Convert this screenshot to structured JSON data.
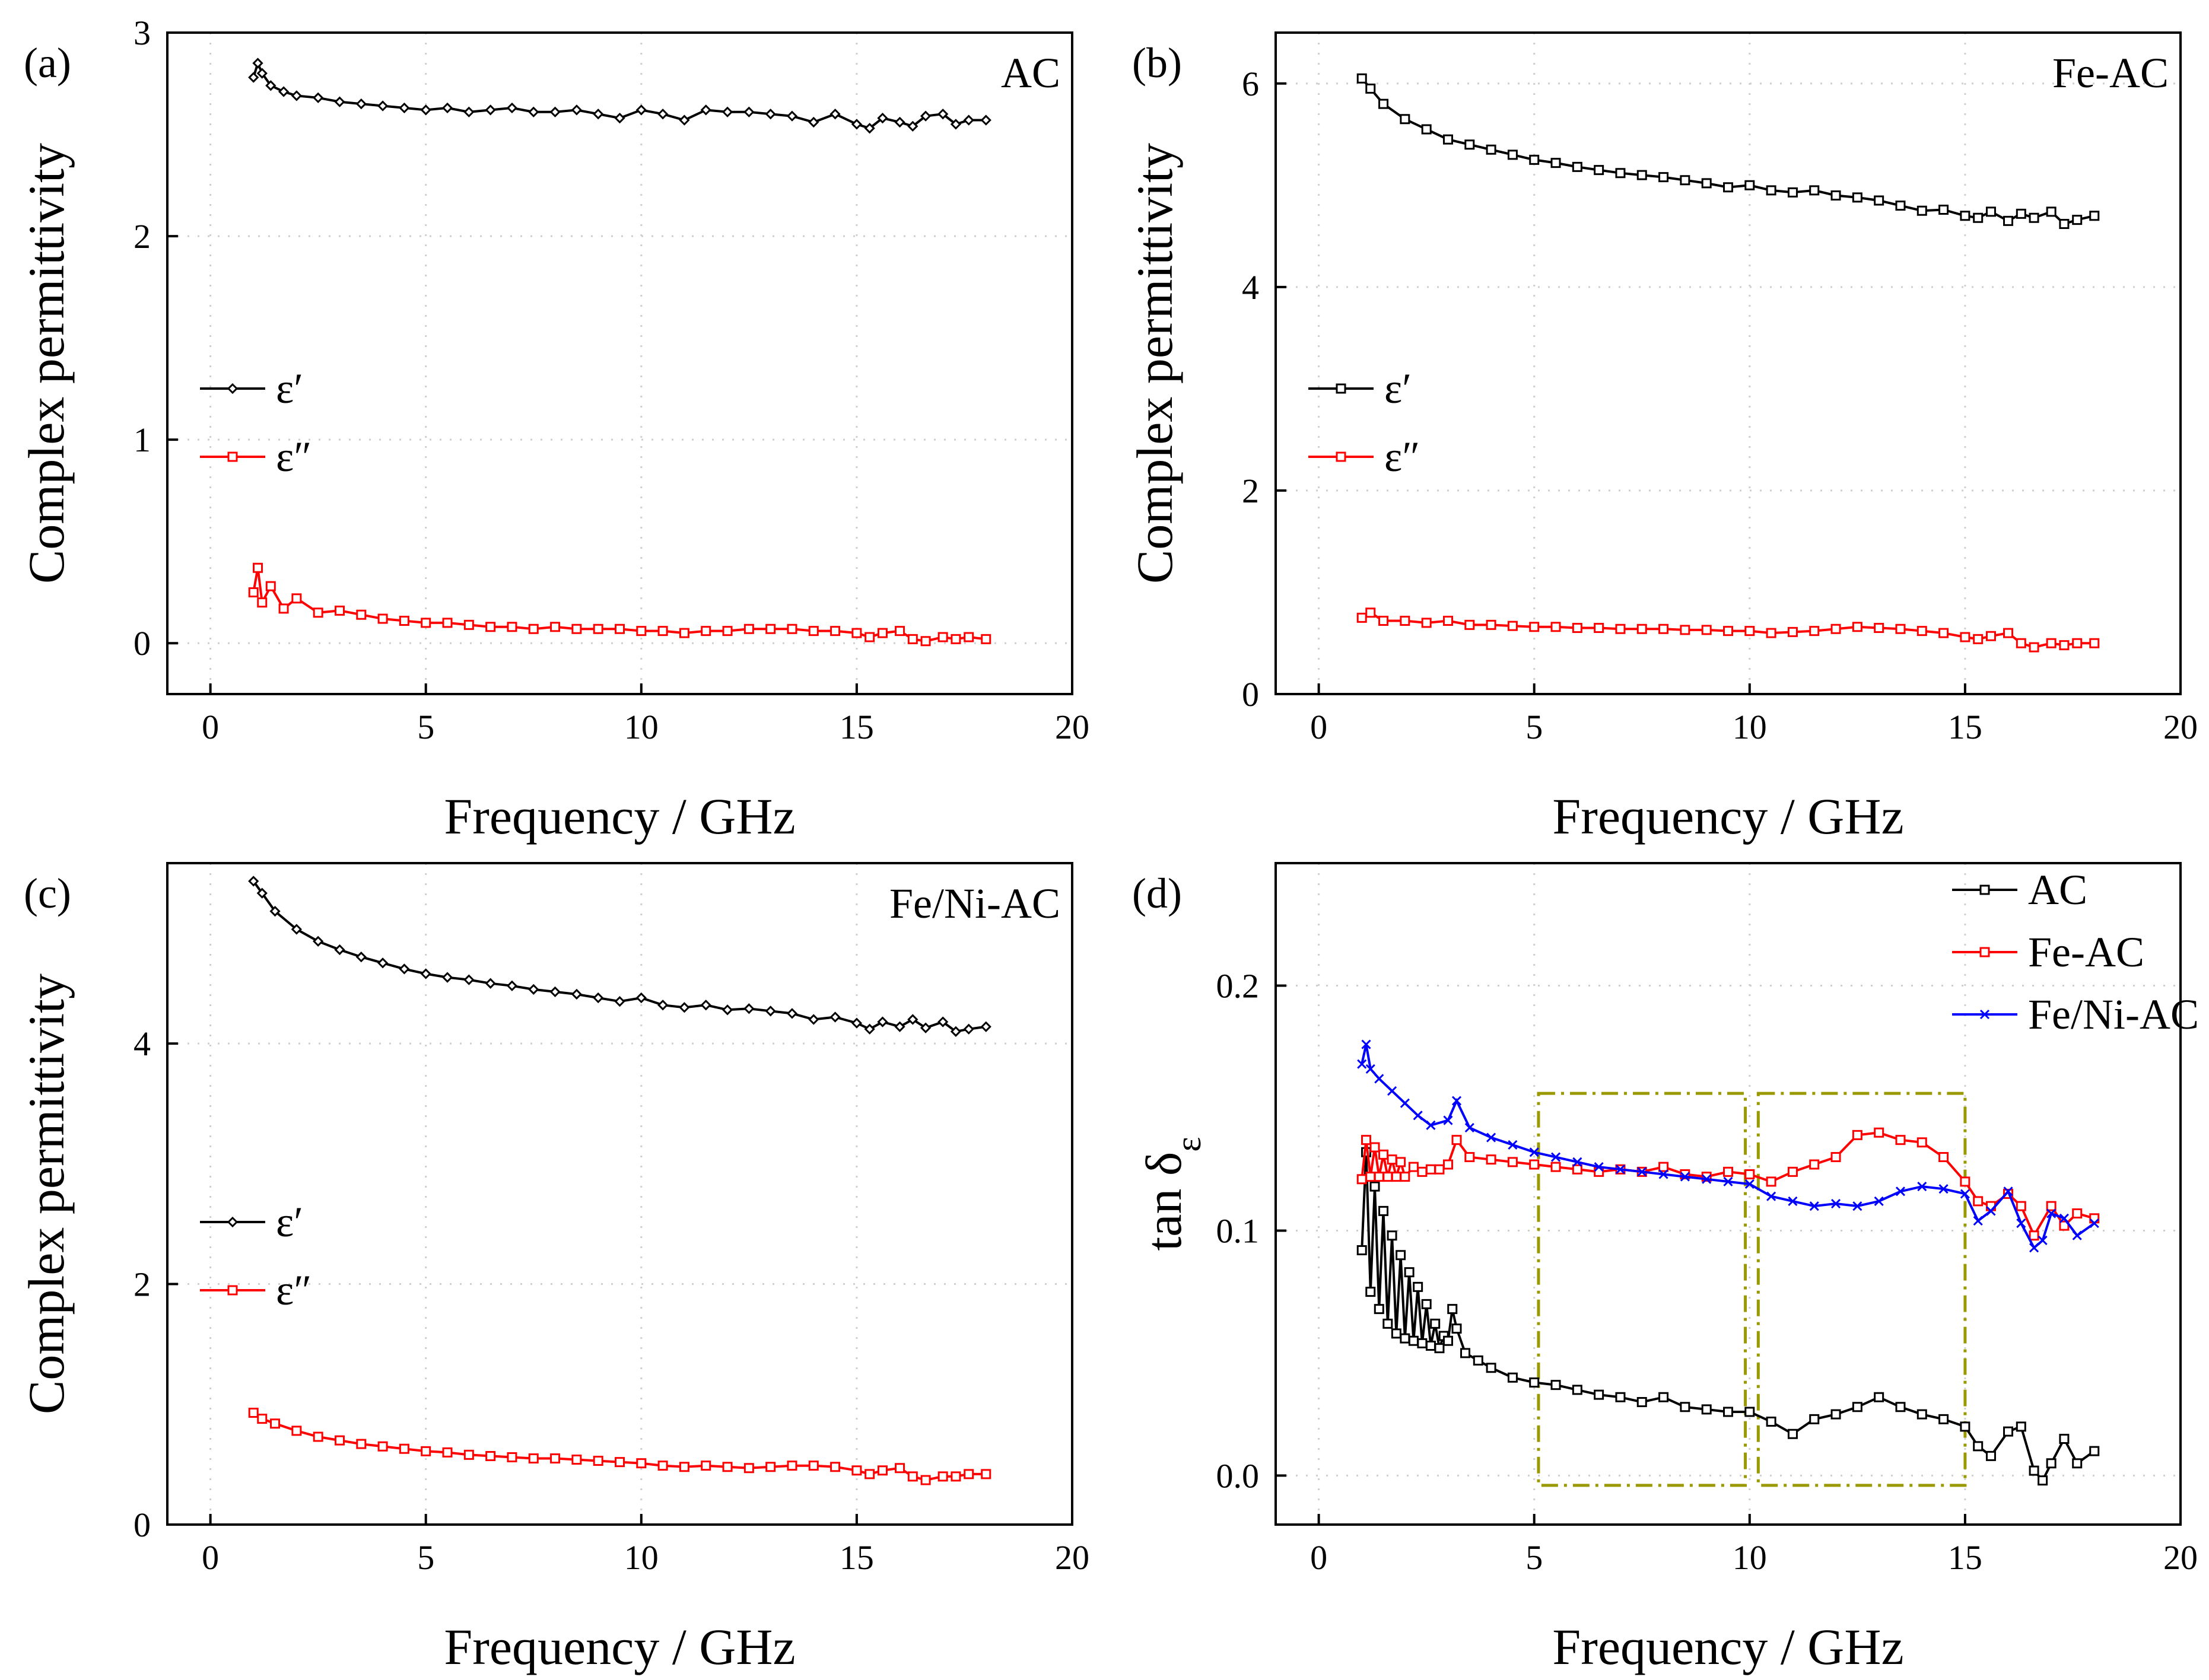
{
  "figure": {
    "layout": "2x2 panels"
  },
  "chart_data": [
    {
      "panel": "(a)",
      "type": "line",
      "annotation": "AC",
      "xlabel": "Frequency / GHz",
      "ylabel": "Complex permittivity",
      "xlim": [
        -1,
        20
      ],
      "ylim": [
        -0.25,
        3.0
      ],
      "xticks": [
        0,
        5,
        10,
        15,
        20
      ],
      "yticks": [
        0,
        1,
        2,
        3
      ],
      "grid": true,
      "legend_position": "center-left",
      "series": [
        {
          "name": "ε′",
          "color": "#000000",
          "marker": "diamond",
          "x": [
            1,
            1.1,
            1.2,
            1.4,
            1.7,
            2,
            2.5,
            3,
            3.5,
            4,
            4.5,
            5,
            5.5,
            6,
            6.5,
            7,
            7.5,
            8,
            8.5,
            9,
            9.5,
            10,
            10.5,
            11,
            11.5,
            12,
            12.5,
            13,
            13.5,
            14,
            14.5,
            15,
            15.3,
            15.6,
            16,
            16.3,
            16.6,
            17,
            17.3,
            17.6,
            18
          ],
          "y": [
            2.78,
            2.85,
            2.8,
            2.74,
            2.71,
            2.69,
            2.68,
            2.66,
            2.65,
            2.64,
            2.63,
            2.62,
            2.63,
            2.61,
            2.62,
            2.63,
            2.61,
            2.61,
            2.62,
            2.6,
            2.58,
            2.62,
            2.6,
            2.57,
            2.62,
            2.61,
            2.61,
            2.6,
            2.59,
            2.56,
            2.6,
            2.55,
            2.53,
            2.58,
            2.56,
            2.54,
            2.59,
            2.6,
            2.55,
            2.57,
            2.57
          ]
        },
        {
          "name": "ε″",
          "color": "#ff0000",
          "marker": "square",
          "x": [
            1,
            1.1,
            1.2,
            1.4,
            1.7,
            2,
            2.5,
            3,
            3.5,
            4,
            4.5,
            5,
            5.5,
            6,
            6.5,
            7,
            7.5,
            8,
            8.5,
            9,
            9.5,
            10,
            10.5,
            11,
            11.5,
            12,
            12.5,
            13,
            13.5,
            14,
            14.5,
            15,
            15.3,
            15.6,
            16,
            16.3,
            16.6,
            17,
            17.3,
            17.6,
            18
          ],
          "y": [
            0.25,
            0.37,
            0.2,
            0.28,
            0.17,
            0.22,
            0.15,
            0.16,
            0.14,
            0.12,
            0.11,
            0.1,
            0.1,
            0.09,
            0.08,
            0.08,
            0.07,
            0.08,
            0.07,
            0.07,
            0.07,
            0.06,
            0.06,
            0.05,
            0.06,
            0.06,
            0.07,
            0.07,
            0.07,
            0.06,
            0.06,
            0.05,
            0.03,
            0.05,
            0.06,
            0.02,
            0.01,
            0.03,
            0.02,
            0.03,
            0.02
          ]
        }
      ]
    },
    {
      "panel": "(b)",
      "type": "line",
      "annotation": "Fe-AC",
      "xlabel": "Frequency / GHz",
      "ylabel": "Complex permittivity",
      "xlim": [
        -1,
        20
      ],
      "ylim": [
        0,
        6.5
      ],
      "xticks": [
        0,
        5,
        10,
        15,
        20
      ],
      "yticks": [
        0,
        2,
        4,
        6
      ],
      "grid": true,
      "legend_position": "center-left",
      "series": [
        {
          "name": "ε′",
          "color": "#000000",
          "marker": "square",
          "x": [
            1,
            1.2,
            1.5,
            2,
            2.5,
            3,
            3.5,
            4,
            4.5,
            5,
            5.5,
            6,
            6.5,
            7,
            7.5,
            8,
            8.5,
            9,
            9.5,
            10,
            10.5,
            11,
            11.5,
            12,
            12.5,
            13,
            13.5,
            14,
            14.5,
            15,
            15.3,
            15.6,
            16,
            16.3,
            16.6,
            17,
            17.3,
            17.6,
            18
          ],
          "y": [
            6.05,
            5.95,
            5.8,
            5.65,
            5.55,
            5.45,
            5.4,
            5.35,
            5.3,
            5.25,
            5.22,
            5.18,
            5.15,
            5.12,
            5.1,
            5.08,
            5.05,
            5.02,
            4.98,
            5.0,
            4.95,
            4.93,
            4.95,
            4.9,
            4.88,
            4.85,
            4.8,
            4.75,
            4.76,
            4.7,
            4.68,
            4.74,
            4.65,
            4.72,
            4.68,
            4.74,
            4.62,
            4.66,
            4.7
          ]
        },
        {
          "name": "ε″",
          "color": "#ff0000",
          "marker": "square",
          "x": [
            1,
            1.2,
            1.5,
            2,
            2.5,
            3,
            3.5,
            4,
            4.5,
            5,
            5.5,
            6,
            6.5,
            7,
            7.5,
            8,
            8.5,
            9,
            9.5,
            10,
            10.5,
            11,
            11.5,
            12,
            12.5,
            13,
            13.5,
            14,
            14.5,
            15,
            15.3,
            15.6,
            16,
            16.3,
            16.6,
            17,
            17.3,
            17.6,
            18
          ],
          "y": [
            0.75,
            0.8,
            0.72,
            0.72,
            0.7,
            0.72,
            0.68,
            0.68,
            0.67,
            0.66,
            0.66,
            0.65,
            0.65,
            0.64,
            0.64,
            0.64,
            0.63,
            0.63,
            0.62,
            0.62,
            0.6,
            0.61,
            0.62,
            0.64,
            0.66,
            0.65,
            0.64,
            0.62,
            0.6,
            0.56,
            0.54,
            0.57,
            0.6,
            0.5,
            0.46,
            0.5,
            0.48,
            0.5,
            0.5
          ]
        }
      ]
    },
    {
      "panel": "(c)",
      "type": "line",
      "annotation": "Fe/Ni-AC",
      "xlabel": "Frequency / GHz",
      "ylabel": "Complex permittivity",
      "xlim": [
        -1,
        20
      ],
      "ylim": [
        0,
        5.5
      ],
      "xticks": [
        0,
        5,
        10,
        15,
        20
      ],
      "yticks": [
        0,
        2,
        4
      ],
      "grid": true,
      "legend_position": "center-left",
      "series": [
        {
          "name": "ε′",
          "color": "#000000",
          "marker": "diamond",
          "x": [
            1,
            1.2,
            1.5,
            2,
            2.5,
            3,
            3.5,
            4,
            4.5,
            5,
            5.5,
            6,
            6.5,
            7,
            7.5,
            8,
            8.5,
            9,
            9.5,
            10,
            10.5,
            11,
            11.5,
            12,
            12.5,
            13,
            13.5,
            14,
            14.5,
            15,
            15.3,
            15.6,
            16,
            16.3,
            16.6,
            17,
            17.3,
            17.6,
            18
          ],
          "y": [
            5.35,
            5.25,
            5.1,
            4.95,
            4.85,
            4.78,
            4.72,
            4.67,
            4.62,
            4.58,
            4.55,
            4.53,
            4.5,
            4.48,
            4.45,
            4.43,
            4.41,
            4.38,
            4.35,
            4.38,
            4.32,
            4.3,
            4.32,
            4.28,
            4.29,
            4.27,
            4.25,
            4.2,
            4.22,
            4.17,
            4.12,
            4.18,
            4.14,
            4.2,
            4.13,
            4.18,
            4.1,
            4.12,
            4.14
          ]
        },
        {
          "name": "ε″",
          "color": "#ff0000",
          "marker": "square",
          "x": [
            1,
            1.2,
            1.5,
            2,
            2.5,
            3,
            3.5,
            4,
            4.5,
            5,
            5.5,
            6,
            6.5,
            7,
            7.5,
            8,
            8.5,
            9,
            9.5,
            10,
            10.5,
            11,
            11.5,
            12,
            12.5,
            13,
            13.5,
            14,
            14.5,
            15,
            15.3,
            15.6,
            16,
            16.3,
            16.6,
            17,
            17.3,
            17.6,
            18
          ],
          "y": [
            0.93,
            0.88,
            0.84,
            0.78,
            0.73,
            0.7,
            0.67,
            0.65,
            0.63,
            0.61,
            0.6,
            0.58,
            0.57,
            0.56,
            0.55,
            0.55,
            0.54,
            0.53,
            0.52,
            0.51,
            0.49,
            0.48,
            0.49,
            0.48,
            0.47,
            0.48,
            0.49,
            0.49,
            0.48,
            0.45,
            0.42,
            0.45,
            0.47,
            0.4,
            0.37,
            0.4,
            0.4,
            0.42,
            0.42
          ]
        }
      ]
    },
    {
      "panel": "(d)",
      "type": "line",
      "annotation": "",
      "xlabel": "Frequency / GHz",
      "ylabel": "tan δε",
      "xlim": [
        -1,
        20
      ],
      "ylim": [
        -0.02,
        0.25
      ],
      "xticks": [
        0,
        5,
        10,
        15,
        20
      ],
      "yticks": [
        0.0,
        0.1,
        0.2
      ],
      "ytick_labels": [
        "0.0",
        "0.1",
        "0.2"
      ],
      "grid": true,
      "legend_position": "top-right",
      "boxes_x": [
        [
          5.1,
          9.9
        ],
        [
          10.2,
          15
        ]
      ],
      "boxes_y": [
        -0.004,
        0.156
      ],
      "series": [
        {
          "name": "AC",
          "color": "#000000",
          "marker": "square",
          "x": [
            1,
            1.1,
            1.2,
            1.3,
            1.4,
            1.5,
            1.6,
            1.7,
            1.8,
            1.9,
            2,
            2.1,
            2.2,
            2.3,
            2.4,
            2.5,
            2.6,
            2.7,
            2.8,
            2.9,
            3,
            3.1,
            3.2,
            3.4,
            3.7,
            4,
            4.5,
            5,
            5.5,
            6,
            6.5,
            7,
            7.5,
            8,
            8.5,
            9,
            9.5,
            10,
            10.5,
            11,
            11.5,
            12,
            12.5,
            13,
            13.5,
            14,
            14.5,
            15,
            15.3,
            15.6,
            16,
            16.3,
            16.6,
            16.8,
            17,
            17.3,
            17.6,
            18
          ],
          "y": [
            0.092,
            0.132,
            0.075,
            0.118,
            0.068,
            0.108,
            0.062,
            0.098,
            0.058,
            0.09,
            0.056,
            0.083,
            0.055,
            0.077,
            0.054,
            0.07,
            0.053,
            0.062,
            0.052,
            0.057,
            0.055,
            0.068,
            0.06,
            0.05,
            0.047,
            0.044,
            0.04,
            0.038,
            0.037,
            0.035,
            0.033,
            0.032,
            0.03,
            0.032,
            0.028,
            0.027,
            0.026,
            0.026,
            0.022,
            0.017,
            0.023,
            0.025,
            0.028,
            0.032,
            0.028,
            0.025,
            0.023,
            0.02,
            0.012,
            0.008,
            0.018,
            0.02,
            0.002,
            -0.002,
            0.005,
            0.015,
            0.005,
            0.01
          ]
        },
        {
          "name": "Fe-AC",
          "color": "#ff0000",
          "marker": "square",
          "x": [
            1,
            1.1,
            1.2,
            1.3,
            1.4,
            1.5,
            1.6,
            1.7,
            1.8,
            1.9,
            2,
            2.2,
            2.4,
            2.6,
            2.8,
            3,
            3.2,
            3.5,
            4,
            4.5,
            5,
            5.5,
            6,
            6.5,
            7,
            7.5,
            8,
            8.5,
            9,
            9.5,
            10,
            10.5,
            11,
            11.5,
            12,
            12.5,
            13,
            13.5,
            14,
            14.5,
            15,
            15.3,
            15.6,
            16,
            16.3,
            16.6,
            17,
            17.3,
            17.6,
            18
          ],
          "y": [
            0.121,
            0.137,
            0.122,
            0.134,
            0.122,
            0.131,
            0.122,
            0.129,
            0.122,
            0.128,
            0.122,
            0.126,
            0.124,
            0.125,
            0.125,
            0.127,
            0.137,
            0.13,
            0.129,
            0.128,
            0.127,
            0.126,
            0.125,
            0.124,
            0.125,
            0.124,
            0.126,
            0.123,
            0.122,
            0.124,
            0.123,
            0.12,
            0.124,
            0.127,
            0.13,
            0.139,
            0.14,
            0.137,
            0.136,
            0.13,
            0.12,
            0.112,
            0.11,
            0.115,
            0.11,
            0.098,
            0.11,
            0.102,
            0.107,
            0.105
          ]
        },
        {
          "name": "Fe/Ni-AC",
          "color": "#0000ff",
          "marker": "x",
          "x": [
            1,
            1.1,
            1.2,
            1.4,
            1.7,
            2,
            2.3,
            2.6,
            3,
            3.2,
            3.5,
            4,
            4.5,
            5,
            5.5,
            6,
            6.5,
            7,
            7.5,
            8,
            8.5,
            9,
            9.5,
            10,
            10.5,
            11,
            11.5,
            12,
            12.5,
            13,
            13.5,
            14,
            14.5,
            15,
            15.3,
            15.6,
            16,
            16.3,
            16.6,
            16.8,
            17,
            17.3,
            17.6,
            18
          ],
          "y": [
            0.168,
            0.176,
            0.166,
            0.162,
            0.157,
            0.152,
            0.147,
            0.143,
            0.145,
            0.153,
            0.142,
            0.138,
            0.135,
            0.132,
            0.13,
            0.128,
            0.126,
            0.125,
            0.124,
            0.123,
            0.122,
            0.121,
            0.12,
            0.119,
            0.114,
            0.112,
            0.11,
            0.111,
            0.11,
            0.112,
            0.116,
            0.118,
            0.117,
            0.115,
            0.104,
            0.108,
            0.116,
            0.103,
            0.093,
            0.096,
            0.107,
            0.105,
            0.098,
            0.103
          ]
        }
      ]
    }
  ]
}
